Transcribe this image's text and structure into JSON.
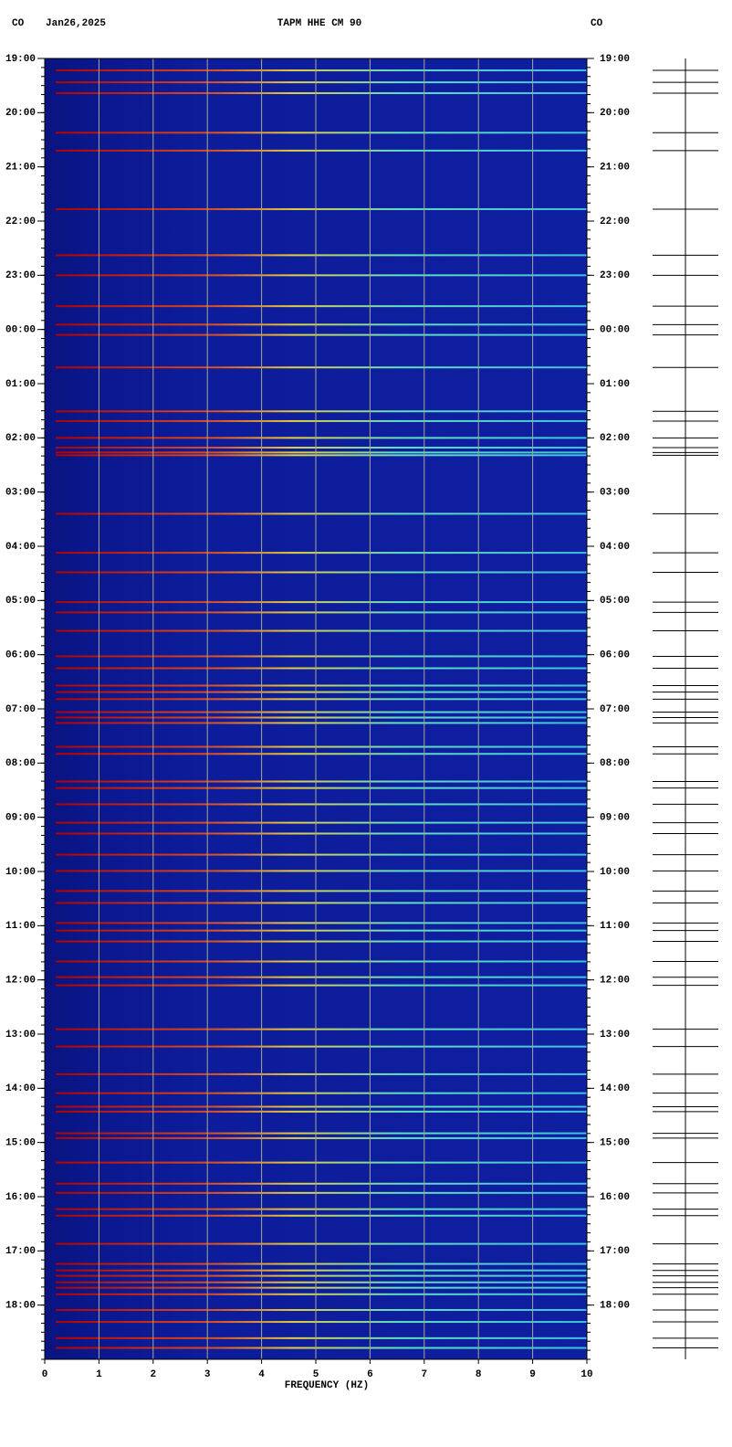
{
  "chart_data": {
    "type": "spectrogram",
    "title": "TAPM HHE CM 90",
    "network_left": "CO",
    "network_right": "CO",
    "date": "Jan26,2025",
    "x_label": "FREQUENCY (HZ)",
    "xlim": [
      0,
      10
    ],
    "xticks": [
      0,
      1,
      2,
      3,
      4,
      5,
      6,
      7,
      8,
      9,
      10
    ],
    "ylim": [
      0,
      24
    ],
    "yticks": [
      {
        "value": 0,
        "label": "19:00"
      },
      {
        "value": 1,
        "label": "20:00"
      },
      {
        "value": 2,
        "label": "21:00"
      },
      {
        "value": 3,
        "label": "22:00"
      },
      {
        "value": 4,
        "label": "23:00"
      },
      {
        "value": 5,
        "label": "00:00"
      },
      {
        "value": 6,
        "label": "01:00"
      },
      {
        "value": 7,
        "label": "02:00"
      },
      {
        "value": 8,
        "label": "03:00"
      },
      {
        "value": 9,
        "label": "04:00"
      },
      {
        "value": 10,
        "label": "05:00"
      },
      {
        "value": 11,
        "label": "06:00"
      },
      {
        "value": 12,
        "label": "07:00"
      },
      {
        "value": 13,
        "label": "08:00"
      },
      {
        "value": 14,
        "label": "09:00"
      },
      {
        "value": 15,
        "label": "10:00"
      },
      {
        "value": 16,
        "label": "11:00"
      },
      {
        "value": 17,
        "label": "12:00"
      },
      {
        "value": 18,
        "label": "13:00"
      },
      {
        "value": 19,
        "label": "14:00"
      },
      {
        "value": 20,
        "label": "15:00"
      },
      {
        "value": 21,
        "label": "16:00"
      },
      {
        "value": 22,
        "label": "17:00"
      },
      {
        "value": 23,
        "label": "18:00"
      }
    ],
    "grid": true,
    "events": [
      0.22,
      0.44,
      0.64,
      1.37,
      1.7,
      2.78,
      3.63,
      4.0,
      4.57,
      4.91,
      5.1,
      5.7,
      6.51,
      6.69,
      7.0,
      7.18,
      7.27,
      7.32,
      8.4,
      9.12,
      9.48,
      10.03,
      10.22,
      10.56,
      11.03,
      11.25,
      11.57,
      11.69,
      11.82,
      12.06,
      12.16,
      12.26,
      12.7,
      12.83,
      13.34,
      13.46,
      13.76,
      14.1,
      14.3,
      14.69,
      14.99,
      15.36,
      15.58,
      15.95,
      16.09,
      16.29,
      16.66,
      16.95,
      17.1,
      17.91,
      18.23,
      18.74,
      19.09,
      19.34,
      19.43,
      19.83,
      19.92,
      20.37,
      20.76,
      20.93,
      21.23,
      21.35,
      21.87,
      22.24,
      22.36,
      22.46,
      22.58,
      22.68,
      22.8,
      23.09,
      23.31,
      23.61,
      23.79
    ]
  }
}
